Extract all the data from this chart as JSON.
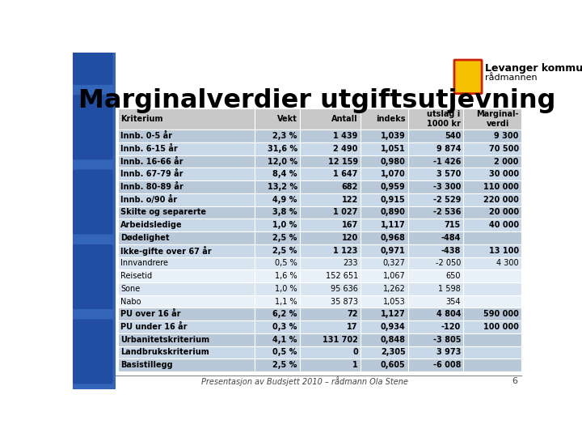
{
  "title": "Marginalverdier utgiftsutjevning",
  "subtitle": "Presentasjon av Budsjett 2010 – rådmann Ola Stene",
  "page_number": "6",
  "header": [
    "Kriterium",
    "Vekt",
    "Antall",
    "indeks",
    "utslag i\n1000 kr",
    "Marginal-\nverdi"
  ],
  "rows": [
    [
      "Innb. 0-5 år",
      "2,3 %",
      "1 439",
      "1,039",
      "540",
      "9 300"
    ],
    [
      "Innb. 6-15 år",
      "31,6 %",
      "2 490",
      "1,051",
      "9 874",
      "70 500"
    ],
    [
      "Innb. 16-66 år",
      "12,0 %",
      "12 159",
      "0,980",
      "-1 426",
      "2 000"
    ],
    [
      "Innb. 67-79 år",
      "8,4 %",
      "1 647",
      "1,070",
      "3 570",
      "30 000"
    ],
    [
      "Innb. 80-89 år",
      "13,2 %",
      "682",
      "0,959",
      "-3 300",
      "110 000"
    ],
    [
      "Innb. o/90 år",
      "4,9 %",
      "122",
      "0,915",
      "-2 529",
      "220 000"
    ],
    [
      "Skilte og separerte",
      "3,8 %",
      "1 027",
      "0,890",
      "-2 536",
      "20 000"
    ],
    [
      "Arbeidsledige",
      "1,0 %",
      "167",
      "1,117",
      "715",
      "40 000"
    ],
    [
      "Dødelighet",
      "2,5 %",
      "120",
      "0,968",
      "-484",
      ""
    ],
    [
      "Ikke-gifte over 67 år",
      "2,5 %",
      "1 123",
      "0,971",
      "-438",
      "13 100"
    ],
    [
      "Innvandrere",
      "0,5 %",
      "233",
      "0,327",
      "-2 050",
      "4 300"
    ],
    [
      "Reisetid",
      "1,6 %",
      "152 651",
      "1,067",
      "650",
      ""
    ],
    [
      "Sone",
      "1,0 %",
      "95 636",
      "1,262",
      "1 598",
      ""
    ],
    [
      "Nabo",
      "1,1 %",
      "35 873",
      "1,053",
      "354",
      ""
    ],
    [
      "PU over 16 år",
      "6,2 %",
      "72",
      "1,127",
      "4 804",
      "590 000"
    ],
    [
      "PU under 16 år",
      "0,3 %",
      "17",
      "0,934",
      "-120",
      "100 000"
    ],
    [
      "Urbanitetskriterium",
      "4,1 %",
      "131 702",
      "0,848",
      "-3 805",
      ""
    ],
    [
      "Landbrukskriterium",
      "0,5 %",
      "0",
      "2,305",
      "3 973",
      ""
    ],
    [
      "Basistillegg",
      "2,5 %",
      "1",
      "0,605",
      "-6 008",
      ""
    ]
  ],
  "bold_rows": [
    0,
    1,
    2,
    3,
    4,
    5,
    6,
    7,
    8,
    9,
    14,
    15,
    16,
    17,
    18
  ],
  "bg_header": "#c8c8c8",
  "bg_bold_even": "#b8c8d8",
  "bg_bold_odd": "#c8d8e8",
  "bg_light_even": "#d8e4f0",
  "bg_light_odd": "#e8f0f8",
  "border_color": "#ffffff",
  "title_color": "#000000",
  "footer_color": "#444444",
  "bg_left_strip": "#2255aa",
  "bg_main": "#ffffff",
  "logo_shield_color": "#f5c000",
  "logo_shield_border": "#cc2200"
}
